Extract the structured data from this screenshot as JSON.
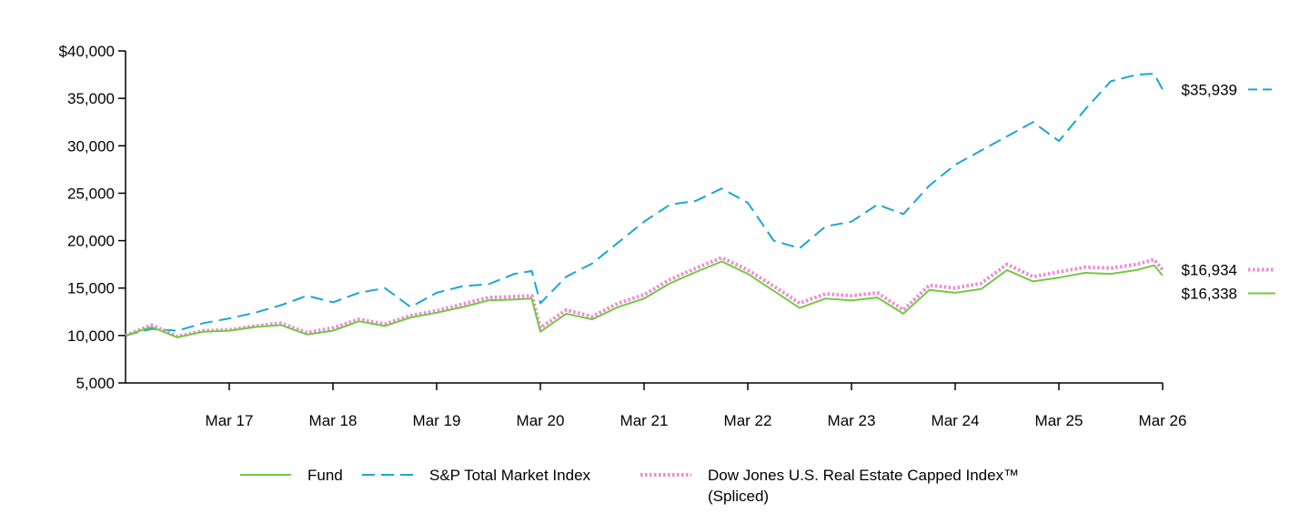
{
  "chart_data": {
    "type": "line",
    "y_tick_labels": [
      "$40,000",
      "35,000",
      "30,000",
      "25,000",
      "20,000",
      "15,000",
      "10,000",
      "5,000"
    ],
    "y_tick_values": [
      40000,
      35000,
      30000,
      25000,
      20000,
      15000,
      10000,
      5000
    ],
    "ylim": [
      5000,
      40000
    ],
    "x_range": [
      "2016-03",
      "2026-03"
    ],
    "x_ticks": [
      {
        "label": "Mar 17",
        "date": "2017-03"
      },
      {
        "label": "Mar 18",
        "date": "2018-03"
      },
      {
        "label": "Mar 19",
        "date": "2019-03"
      },
      {
        "label": "Mar 20",
        "date": "2020-03"
      },
      {
        "label": "Mar 21",
        "date": "2021-03"
      },
      {
        "label": "Mar 22",
        "date": "2022-03"
      },
      {
        "label": "Mar 23",
        "date": "2023-03"
      },
      {
        "label": "Mar 24",
        "date": "2024-03"
      },
      {
        "label": "Mar 25",
        "date": "2025-03"
      },
      {
        "label": "Mar 26",
        "date": "2026-03"
      }
    ],
    "grid": false,
    "legend_position": "bottom",
    "series": [
      {
        "name": "S&P Total Market Index",
        "color": "#1aa6d3",
        "style": "dashed",
        "end_label": "$35,939",
        "x": [
          "2016-03",
          "2016-06",
          "2016-09",
          "2016-12",
          "2017-03",
          "2017-06",
          "2017-09",
          "2017-12",
          "2018-03",
          "2018-06",
          "2018-09",
          "2018-12",
          "2019-03",
          "2019-06",
          "2019-09",
          "2019-12",
          "2020-02",
          "2020-03",
          "2020-06",
          "2020-09",
          "2020-12",
          "2021-03",
          "2021-06",
          "2021-09",
          "2021-12",
          "2022-03",
          "2022-06",
          "2022-09",
          "2022-12",
          "2023-03",
          "2023-06",
          "2023-09",
          "2023-12",
          "2024-03",
          "2024-06",
          "2024-09",
          "2024-12",
          "2025-03",
          "2025-06",
          "2025-09",
          "2025-12",
          "2026-02",
          "2026-03"
        ],
        "y": [
          10000,
          10700,
          10500,
          11300,
          11800,
          12400,
          13200,
          14200,
          13500,
          14500,
          15000,
          13000,
          14500,
          15200,
          15400,
          16500,
          16800,
          13400,
          16200,
          17600,
          19800,
          22000,
          23800,
          24200,
          25500,
          24000,
          20000,
          19200,
          21500,
          22000,
          23800,
          22800,
          25800,
          28000,
          29500,
          31000,
          32500,
          30500,
          33800,
          36800,
          37500,
          37600,
          35939
        ]
      },
      {
        "name": "Dow Jones U.S. Real Estate Capped Index™ (Spliced)",
        "color": "#f08ad6",
        "style": "dotted",
        "end_label": "$16,934",
        "x": [
          "2016-03",
          "2016-06",
          "2016-09",
          "2016-12",
          "2017-03",
          "2017-06",
          "2017-09",
          "2017-12",
          "2018-03",
          "2018-06",
          "2018-09",
          "2018-12",
          "2019-03",
          "2019-06",
          "2019-09",
          "2019-12",
          "2020-02",
          "2020-03",
          "2020-06",
          "2020-09",
          "2020-12",
          "2021-03",
          "2021-06",
          "2021-09",
          "2021-12",
          "2022-03",
          "2022-06",
          "2022-09",
          "2022-12",
          "2023-03",
          "2023-06",
          "2023-09",
          "2023-12",
          "2024-03",
          "2024-06",
          "2024-09",
          "2024-12",
          "2025-03",
          "2025-06",
          "2025-09",
          "2025-12",
          "2026-02",
          "2026-03"
        ],
        "y": [
          10000,
          11100,
          9900,
          10500,
          10600,
          11000,
          11300,
          10300,
          10800,
          11700,
          11200,
          12100,
          12600,
          13300,
          14000,
          14100,
          14200,
          10800,
          12700,
          12000,
          13400,
          14300,
          15900,
          17100,
          18200,
          16900,
          15200,
          13400,
          14400,
          14200,
          14500,
          12700,
          15300,
          15000,
          15500,
          17500,
          16200,
          16700,
          17200,
          17100,
          17500,
          18000,
          16934
        ]
      },
      {
        "name": "Fund",
        "color": "#73c940",
        "style": "solid",
        "end_label": "$16,338",
        "x": [
          "2016-03",
          "2016-06",
          "2016-09",
          "2016-12",
          "2017-03",
          "2017-06",
          "2017-09",
          "2017-12",
          "2018-03",
          "2018-06",
          "2018-09",
          "2018-12",
          "2019-03",
          "2019-06",
          "2019-09",
          "2019-12",
          "2020-02",
          "2020-03",
          "2020-06",
          "2020-09",
          "2020-12",
          "2021-03",
          "2021-06",
          "2021-09",
          "2021-12",
          "2022-03",
          "2022-06",
          "2022-09",
          "2022-12",
          "2023-03",
          "2023-06",
          "2023-09",
          "2023-12",
          "2024-03",
          "2024-06",
          "2024-09",
          "2024-12",
          "2025-03",
          "2025-06",
          "2025-09",
          "2025-12",
          "2026-02",
          "2026-03"
        ],
        "y": [
          10000,
          10900,
          9800,
          10400,
          10500,
          10900,
          11100,
          10100,
          10500,
          11500,
          11000,
          11900,
          12400,
          13000,
          13700,
          13800,
          13900,
          10400,
          12300,
          11700,
          13000,
          13900,
          15500,
          16700,
          17800,
          16500,
          14700,
          12900,
          13900,
          13700,
          14000,
          12300,
          14800,
          14500,
          14900,
          16900,
          15700,
          16100,
          16600,
          16500,
          16900,
          17400,
          16338
        ]
      }
    ],
    "legend": [
      {
        "label": "Fund",
        "color": "#73c940",
        "style": "solid"
      },
      {
        "label": "S&P Total Market Index",
        "color": "#1aa6d3",
        "style": "dashed"
      },
      {
        "label": "Dow Jones U.S. Real Estate Capped Index™",
        "label_line2": "(Spliced)",
        "color": "#f08ad6",
        "style": "dotted"
      }
    ]
  }
}
